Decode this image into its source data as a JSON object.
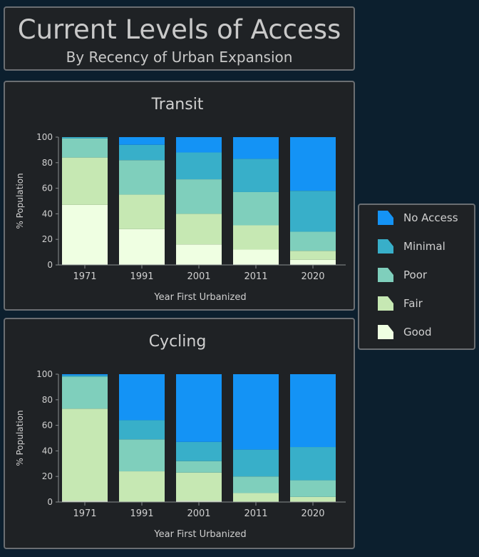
{
  "header": {
    "title": "Current Levels of Access",
    "subtitle": "By Recency of Urban Expansion"
  },
  "legend": [
    {
      "label": "No Access",
      "color": "#1493f5",
      "icon": "no-access-swatch-icon"
    },
    {
      "label": "Minimal",
      "color": "#38afc9",
      "icon": "minimal-swatch-icon"
    },
    {
      "label": "Poor",
      "color": "#7fcfbc",
      "icon": "poor-swatch-icon"
    },
    {
      "label": "Fair",
      "color": "#c6e8b3",
      "icon": "fair-swatch-icon"
    },
    {
      "label": "Good",
      "color": "#efffe2",
      "icon": "good-swatch-icon"
    }
  ],
  "chart_data": [
    {
      "type": "bar",
      "stacked": true,
      "title": "Transit",
      "xlabel": "Year First Urbanized",
      "ylabel": "% Population",
      "ylim": [
        0,
        100
      ],
      "yticks": [
        0,
        20,
        40,
        60,
        80,
        100
      ],
      "categories": [
        "1971",
        "1991",
        "2001",
        "2011",
        "2020"
      ],
      "series": [
        {
          "name": "Good",
          "values": [
            47,
            28,
            16,
            12,
            4
          ]
        },
        {
          "name": "Fair",
          "values": [
            37,
            27,
            24,
            19,
            7
          ]
        },
        {
          "name": "Poor",
          "values": [
            15,
            27,
            27,
            26,
            15
          ]
        },
        {
          "name": "Minimal",
          "values": [
            1,
            12,
            21,
            26,
            32
          ]
        },
        {
          "name": "No Access",
          "values": [
            0,
            6,
            12,
            17,
            42
          ]
        }
      ]
    },
    {
      "type": "bar",
      "stacked": true,
      "title": "Cycling",
      "xlabel": "Year First Urbanized",
      "ylabel": "% Population",
      "ylim": [
        0,
        100
      ],
      "yticks": [
        0,
        20,
        40,
        60,
        80,
        100
      ],
      "categories": [
        "1971",
        "1991",
        "2001",
        "2011",
        "2020"
      ],
      "series": [
        {
          "name": "Good",
          "values": [
            1,
            0,
            1,
            0,
            0
          ]
        },
        {
          "name": "Fair",
          "values": [
            72,
            24,
            22,
            7,
            4
          ]
        },
        {
          "name": "Poor",
          "values": [
            25,
            25,
            9,
            13,
            13
          ]
        },
        {
          "name": "Minimal",
          "values": [
            1,
            15,
            15,
            21,
            26
          ]
        },
        {
          "name": "No Access",
          "values": [
            1,
            36,
            53,
            59,
            57
          ]
        }
      ]
    }
  ]
}
